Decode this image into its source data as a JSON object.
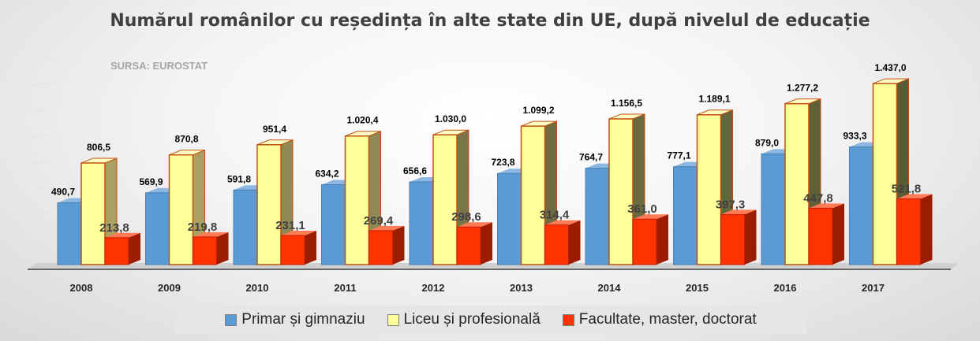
{
  "chart_data": {
    "type": "bar",
    "title": "Numărul românilor cu reședința în alte state din UE, după nivelul de educație",
    "source": "SURSA: EUROSTAT",
    "categories": [
      "2008",
      "2009",
      "2010",
      "2011",
      "2012",
      "2013",
      "2014",
      "2015",
      "2016",
      "2017"
    ],
    "series": [
      {
        "name": "Primar și gimnaziu",
        "color": "#5b9bd5",
        "values": [
          490.7,
          569.9,
          591.8,
          634.2,
          656.6,
          723.8,
          764.7,
          777.1,
          879.0,
          933.3
        ],
        "labels": [
          "490,7",
          "569,9",
          "591,8",
          "634,2",
          "656,6",
          "723,8",
          "764,7",
          "777,1",
          "879,0",
          "933,3"
        ]
      },
      {
        "name": "Liceu și profesională",
        "color": "#ffff99",
        "values": [
          806.5,
          870.8,
          951.4,
          1020.4,
          1030.0,
          1099.2,
          1156.5,
          1189.1,
          1277.2,
          1437.0
        ],
        "labels": [
          "806,5",
          "870,8",
          "951,4",
          "1.020,4",
          "1.030,0",
          "1.099,2",
          "1.156,5",
          "1.189,1",
          "1.277,2",
          "1.437,0"
        ]
      },
      {
        "name": "Facultate, master, doctorat",
        "color": "#ff3300",
        "values": [
          213.8,
          219.8,
          231.1,
          269.4,
          298.6,
          314.4,
          361.0,
          397.3,
          447.8,
          521.8
        ],
        "labels": [
          "213,8",
          "219,8",
          "231,1",
          "269,4",
          "298,6",
          "314,4",
          "361,0",
          "397,3",
          "447,8",
          "521,8"
        ]
      }
    ],
    "legend_position": "bottom",
    "grid": true,
    "ylim": [
      0,
      1500
    ]
  }
}
